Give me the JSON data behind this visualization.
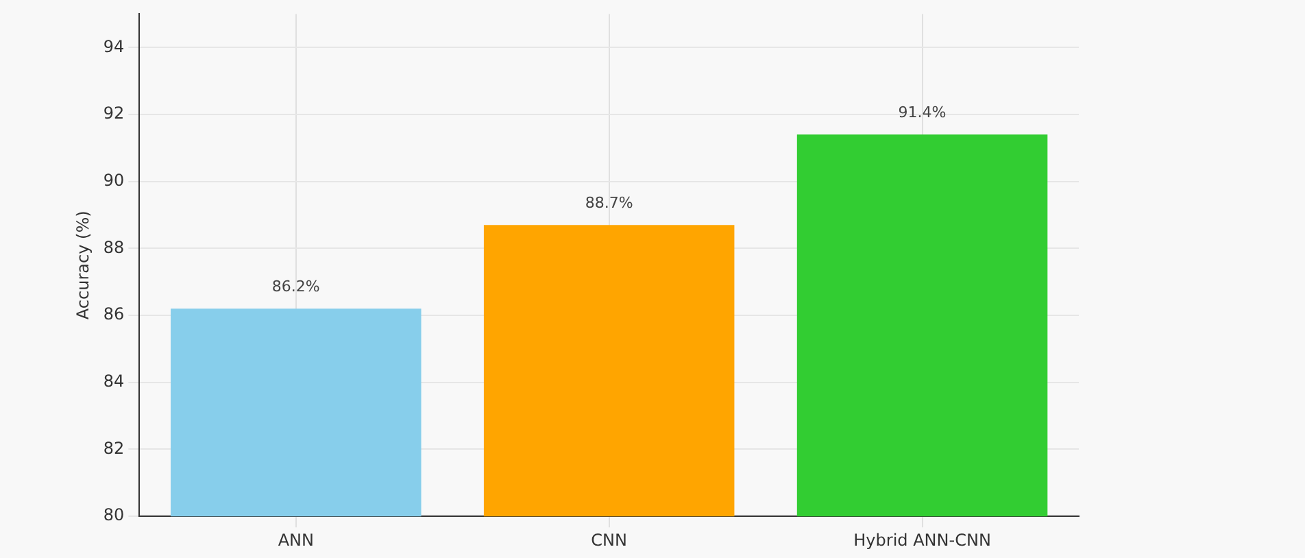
{
  "chart_data": {
    "type": "bar",
    "ylabel": "Accuracy (%)",
    "categories": [
      "ANN",
      "CNN",
      "Hybrid ANN-CNN"
    ],
    "values": [
      86.2,
      88.7,
      91.4
    ],
    "colors": [
      "#87ceeb",
      "#ffa500",
      "#32cd32"
    ],
    "value_labels": [
      "86.2%",
      "88.7%",
      "91.4%"
    ],
    "ylim": [
      80,
      95
    ],
    "yticks": [
      80,
      82,
      84,
      86,
      88,
      90,
      92,
      94
    ],
    "grid": true
  }
}
